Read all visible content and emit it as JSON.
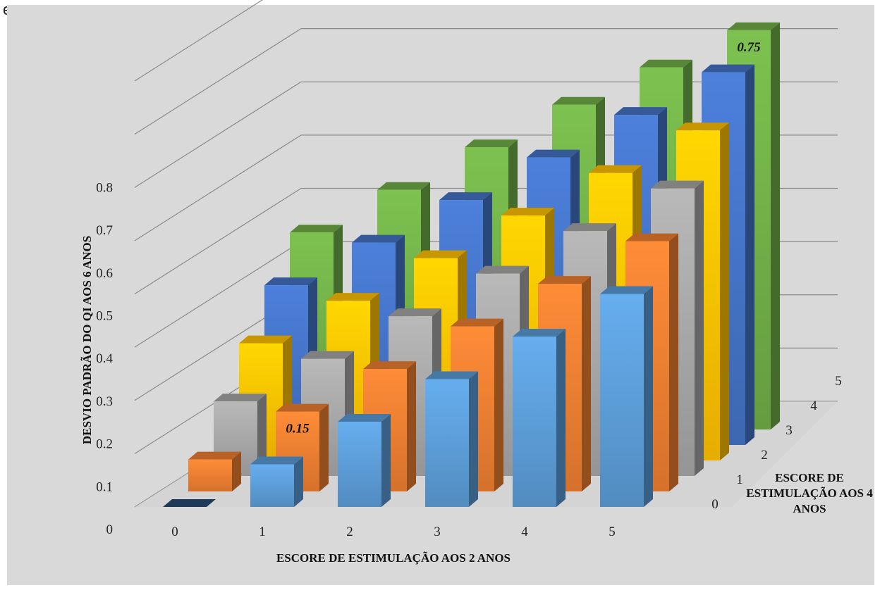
{
  "page_clip_text": "esse.",
  "chart_data": {
    "type": "bar3d",
    "title": "",
    "xlabel": "ESCORE DE ESTIMULAÇÃO AOS 2 ANOS",
    "ylabel": "DESVIO PADRÃO DO QI AOS 6 ANOS",
    "zlabel": "ESCORE DE ESTIMULAÇÃO AOS 4 ANOS",
    "x_categories": [
      "0",
      "1",
      "2",
      "3",
      "4",
      "5"
    ],
    "z_categories": [
      "0",
      "1",
      "2",
      "3",
      "4",
      "5"
    ],
    "y_ticks": [
      "0",
      "0.1",
      "0.2",
      "0.3",
      "0.4",
      "0.5",
      "0.6",
      "0.7",
      "0.8"
    ],
    "ylim": [
      0,
      0.8
    ],
    "grid": true,
    "series": [
      {
        "name": "0",
        "color": "#5b9bd5",
        "values": [
          0,
          0.08,
          0.16,
          0.24,
          0.32,
          0.4
        ]
      },
      {
        "name": "1",
        "color": "#ed7d31",
        "values": [
          0.06,
          0.15,
          0.23,
          0.31,
          0.39,
          0.47
        ]
      },
      {
        "name": "2",
        "color": "#a5a5a5",
        "values": [
          0.14,
          0.22,
          0.3,
          0.38,
          0.46,
          0.54
        ]
      },
      {
        "name": "3",
        "color": "#ffc000",
        "values": [
          0.22,
          0.3,
          0.38,
          0.46,
          0.54,
          0.62
        ]
      },
      {
        "name": "4",
        "color": "#4472c4",
        "values": [
          0.3,
          0.38,
          0.46,
          0.54,
          0.62,
          0.7
        ]
      },
      {
        "name": "5",
        "color": "#70ad47",
        "values": [
          0.37,
          0.45,
          0.53,
          0.61,
          0.68,
          0.75
        ]
      }
    ],
    "data_labels": [
      {
        "series": "1",
        "category": "1",
        "text": "0.15"
      },
      {
        "series": "5",
        "category": "5",
        "text": "0.75"
      }
    ]
  }
}
